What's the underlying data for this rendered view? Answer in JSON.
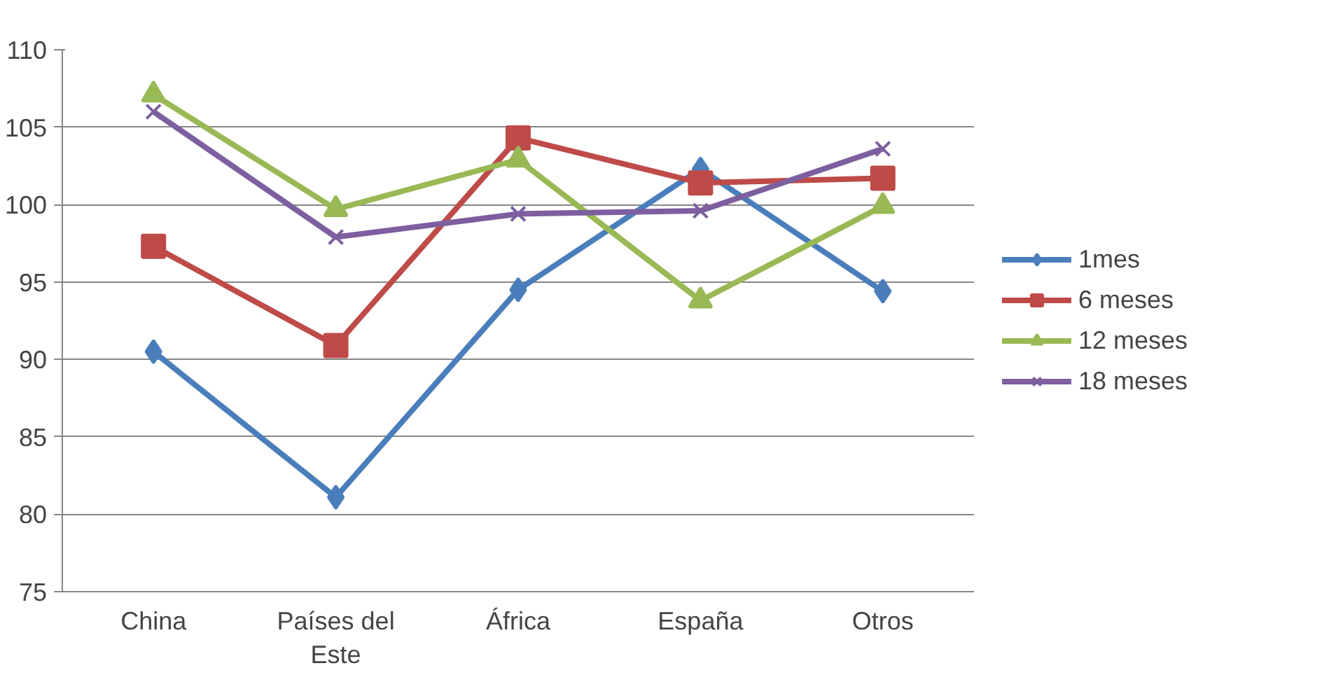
{
  "chart_data": {
    "type": "line",
    "categories": [
      "China",
      "Países del Este",
      "África",
      "España",
      "Otros"
    ],
    "series": [
      {
        "name": "1mes",
        "color": "#4a7ebb",
        "marker": "diamond",
        "values": [
          90.5,
          81.1,
          94.5,
          102.3,
          94.4
        ]
      },
      {
        "name": "6 meses",
        "color": "#be4b48",
        "marker": "square",
        "values": [
          97.3,
          90.9,
          104.3,
          101.4,
          101.7
        ]
      },
      {
        "name": "12 meses",
        "color": "#98b954",
        "marker": "triangle",
        "values": [
          107.1,
          99.7,
          102.9,
          93.8,
          99.9
        ]
      },
      {
        "name": "18 meses",
        "color": "#7d5fa0",
        "marker": "cross",
        "values": [
          106.0,
          97.9,
          99.4,
          99.6,
          103.6
        ]
      }
    ],
    "ylim": [
      75,
      110
    ],
    "yticks": [
      75,
      80,
      85,
      90,
      95,
      100,
      105,
      110
    ],
    "grid": "y",
    "legend": "right",
    "line_style": "solid"
  }
}
